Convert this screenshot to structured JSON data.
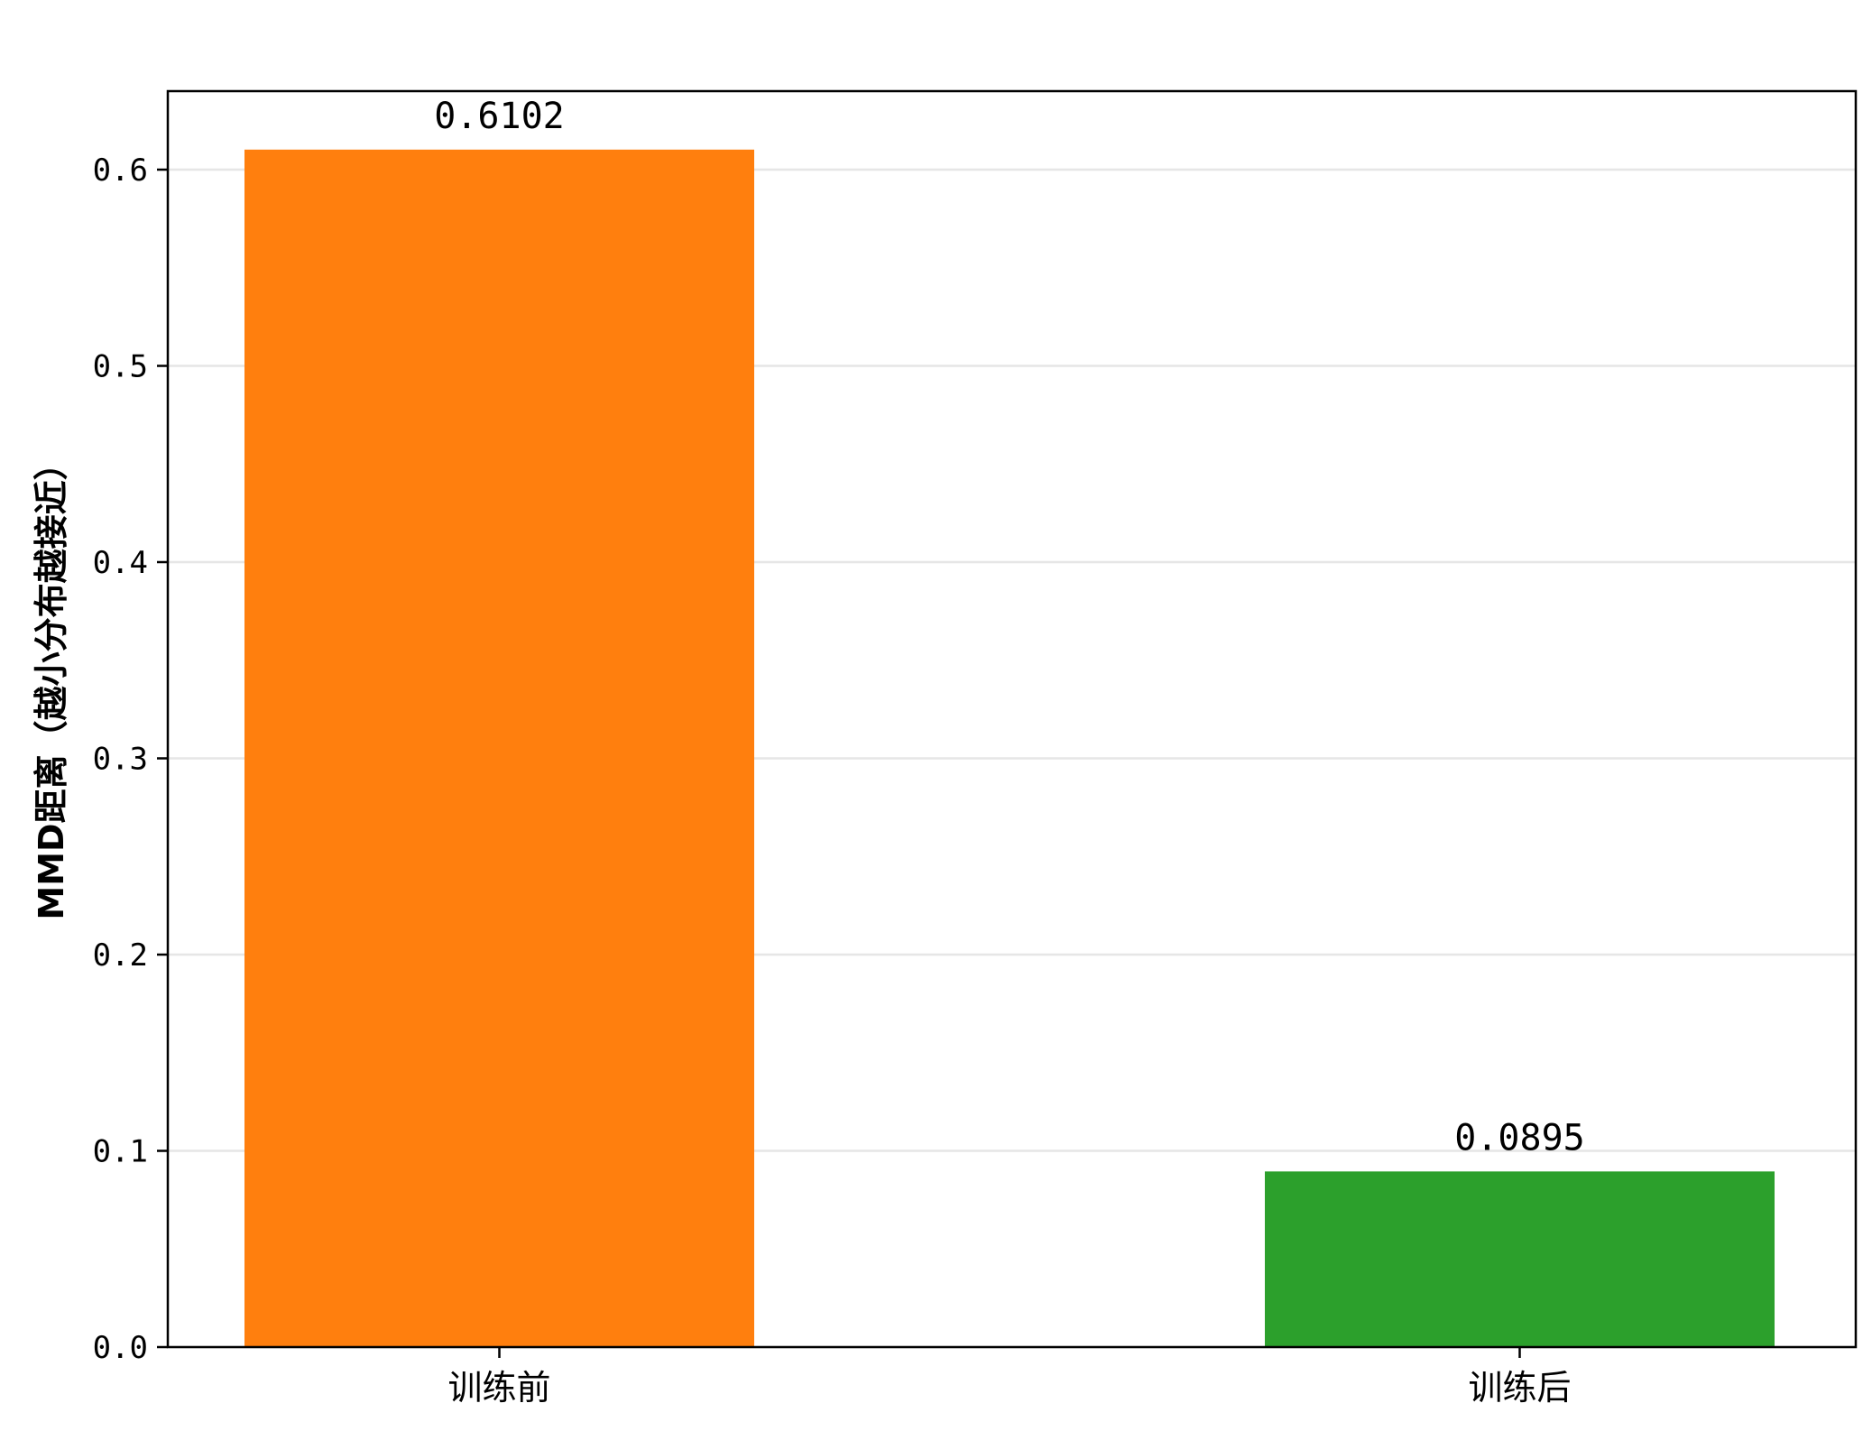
{
  "chart_data": {
    "type": "bar",
    "title": "",
    "xlabel": "",
    "ylabel": "MMD距离（越小分布越接近）",
    "categories": [
      "训练前",
      "训练后"
    ],
    "values": [
      0.6102,
      0.0895
    ],
    "data_labels": [
      "0.6102",
      "0.0895"
    ],
    "bar_colors": [
      "#ff7f0e",
      "#2ca02c"
    ],
    "ylim": [
      0,
      0.64
    ],
    "yticks": [
      0.0,
      0.1,
      0.2,
      0.3,
      0.4,
      0.5,
      0.6
    ],
    "ytick_labels": [
      "0.0",
      "0.1",
      "0.2",
      "0.3",
      "0.4",
      "0.5",
      "0.6"
    ],
    "grid": "horizontal",
    "grid_color": "#e6e6e6",
    "legend": "none"
  }
}
